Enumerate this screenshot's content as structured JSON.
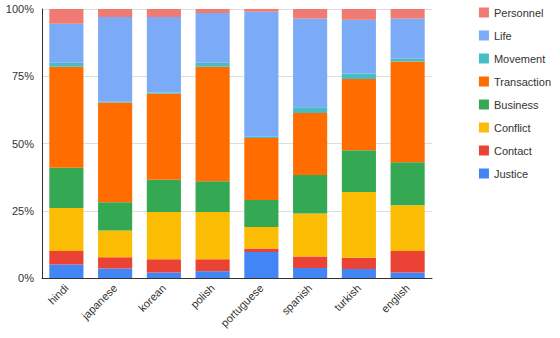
{
  "chart_data": {
    "type": "bar",
    "stacked": true,
    "grid": true,
    "legend": "right",
    "categories": [
      "hindi",
      "japanese",
      "korean",
      "polish",
      "portuguese",
      "spanish",
      "turkish",
      "english"
    ],
    "ylim": [
      0,
      100
    ],
    "yticks": [
      {
        "value": 0,
        "label": "0%"
      },
      {
        "value": 25,
        "label": "25%"
      },
      {
        "value": 50,
        "label": "50%"
      },
      {
        "value": 75,
        "label": "75%"
      },
      {
        "value": 100,
        "label": "100%"
      }
    ],
    "series": [
      {
        "name": "Justice",
        "color": "#4285f4",
        "values": [
          5,
          3.5,
          2,
          2.5,
          9.7,
          3.7,
          3.3,
          2
        ]
      },
      {
        "name": "Contact",
        "color": "#ea4335",
        "values": [
          5,
          4.2,
          5,
          4.5,
          1.3,
          4.3,
          4.2,
          8
        ]
      },
      {
        "name": "Conflict",
        "color": "#fbbc04",
        "values": [
          16,
          10,
          17.5,
          17.5,
          8,
          16,
          24.5,
          17
        ]
      },
      {
        "name": "Business",
        "color": "#34a853",
        "values": [
          15,
          10.5,
          12,
          11.5,
          10,
          14.3,
          15.5,
          16
        ]
      },
      {
        "name": "Transaction",
        "color": "#ff6d01",
        "values": [
          37.5,
          37,
          32,
          42.5,
          23,
          23,
          26.5,
          37.5
        ]
      },
      {
        "name": "Movement",
        "color": "#46bdc6",
        "values": [
          1.5,
          0.3,
          0.5,
          1.5,
          0.5,
          2.2,
          2,
          1
        ]
      },
      {
        "name": "Life",
        "color": "#7baaf7",
        "values": [
          14.5,
          31.5,
          28,
          18.5,
          46.5,
          33,
          20,
          15
        ]
      },
      {
        "name": "Personnel",
        "color": "#f07b72",
        "values": [
          5.5,
          3,
          3,
          1.5,
          1,
          3.5,
          4,
          3.5
        ]
      }
    ]
  }
}
